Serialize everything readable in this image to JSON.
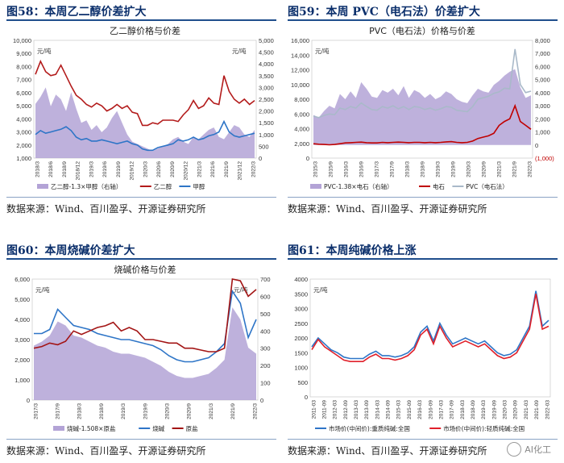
{
  "figures": [
    {
      "label": "图58：本周乙二醇价差扩大",
      "source": "数据来源：Wind、百川盈孚、开源证券研究所",
      "chart_data": {
        "type": "area",
        "title": "乙二醇价格与价差",
        "unit_left": "元/吨",
        "unit_right": "元/吨",
        "ylim_left": [
          1000,
          10000
        ],
        "ylim_right": [
          0,
          5000
        ],
        "yticks_left": [
          "10,000",
          "9,000",
          "8,000",
          "7,000",
          "6,000",
          "5,000",
          "4,000",
          "3,000",
          "2,000",
          "1,000"
        ],
        "yticks_right": [
          "5,000",
          "4,500",
          "4,000",
          "3,500",
          "3,000",
          "2,500",
          "2,000",
          "1,500",
          "1,000",
          "500",
          "0"
        ],
        "xticks": [
          "2018/3",
          "2018/6",
          "2018/9",
          "2018/12",
          "2019/3",
          "2019/6",
          "2019/9",
          "2019/12",
          "2020/3",
          "2020/6",
          "2020/9",
          "2020/12",
          "2021/3",
          "2021/6",
          "2021/9",
          "2021/12",
          "2022/3"
        ],
        "series": [
          {
            "name": "乙二醇-1.3×甲醇（右轴）",
            "axis": "right",
            "kind": "area",
            "color": "#b3a3d6",
            "values": [
              2300,
              2600,
              3000,
              2200,
              2700,
              2500,
              2000,
              2800,
              2100,
              1500,
              1600,
              1200,
              1400,
              1100,
              1300,
              1700,
              2000,
              1500,
              1000,
              700,
              600,
              500,
              400,
              300,
              400,
              500,
              600,
              800,
              900,
              700,
              600,
              900,
              800,
              1000,
              1200,
              1300,
              900,
              800,
              1100,
              1400,
              1300,
              1000,
              900,
              1200
            ]
          },
          {
            "name": "乙二醇",
            "axis": "left",
            "kind": "line",
            "color": "#b31b1b",
            "values": [
              7400,
              8400,
              7600,
              7300,
              7400,
              8100,
              7300,
              6500,
              5800,
              5500,
              5100,
              4900,
              5200,
              5000,
              4600,
              4800,
              5100,
              4800,
              5000,
              4500,
              4400,
              3500,
              3500,
              3700,
              3600,
              3900,
              3900,
              3900,
              3800,
              4300,
              4700,
              5400,
              4800,
              5000,
              5600,
              5200,
              5100,
              7300,
              6100,
              5500,
              5200,
              5500,
              5100,
              5400
            ]
          },
          {
            "name": "甲醇",
            "axis": "left",
            "kind": "line",
            "color": "#2e75c7",
            "values": [
              2800,
              3100,
              2900,
              3000,
              3100,
              3200,
              3400,
              3100,
              2600,
              2400,
              2500,
              2300,
              2300,
              2400,
              2300,
              2200,
              2100,
              2200,
              2300,
              2100,
              2000,
              1700,
              1600,
              1600,
              1800,
              1900,
              2000,
              2100,
              2400,
              2300,
              2400,
              2600,
              2400,
              2500,
              2700,
              2800,
              3000,
              3800,
              3000,
              2700,
              2600,
              2700,
              2800,
              2900
            ]
          }
        ],
        "legend": [
          "乙二醇-1.3×甲醇（右轴）",
          "乙二醇",
          "甲醇"
        ]
      }
    },
    {
      "label": "图59：本周 PVC（电石法）价差扩大",
      "source": "数据来源：Wind、百川盈孚、开源证券研究所",
      "chart_data": {
        "type": "area",
        "title": "PVC（电石法）价格与价差",
        "unit_left": "元/吨",
        "ylim_left": [
          0,
          16000
        ],
        "ylim_right": [
          -1000,
          8000
        ],
        "yticks_left": [
          "16,000",
          "14,000",
          "12,000",
          "10,000",
          "8,000",
          "6,000",
          "4,000",
          "2,000",
          "0"
        ],
        "yticks_right": [
          "8,000",
          "7,000",
          "6,000",
          "5,000",
          "4,000",
          "3,000",
          "2,000",
          "1,000",
          "0",
          "(1,000)"
        ],
        "xticks": [
          "2015/3",
          "2015/9",
          "2016/3",
          "2016/9",
          "2017/3",
          "2017/9",
          "2018/3",
          "2018/9",
          "2019/3",
          "2019/9",
          "2020/3",
          "2020/9",
          "2021/3",
          "2021/9",
          "2022/3"
        ],
        "series": [
          {
            "name": "PVC-1.38×电石（右轴）",
            "axis": "right",
            "kind": "area",
            "color": "#b3a3d6",
            "values": [
              2300,
              2100,
              2600,
              3000,
              2800,
              3900,
              3500,
              4100,
              3600,
              4800,
              4300,
              3700,
              3600,
              4200,
              4000,
              4300,
              3800,
              4500,
              3600,
              4200,
              4000,
              3600,
              3900,
              3500,
              3700,
              4100,
              3900,
              3500,
              3300,
              3200,
              3800,
              4300,
              4100,
              4000,
              4600,
              4900,
              5300,
              5600,
              5800,
              4400,
              3600,
              3800
            ]
          },
          {
            "name": "电石",
            "axis": "right",
            "kind": "line",
            "color": "#c00000",
            "values": [
              100,
              60,
              40,
              20,
              40,
              100,
              160,
              180,
              200,
              220,
              180,
              160,
              160,
              200,
              180,
              200,
              220,
              200,
              180,
              200,
              200,
              180,
              200,
              180,
              200,
              240,
              260,
              200,
              180,
              200,
              300,
              500,
              600,
              700,
              900,
              1500,
              1800,
              2000,
              3000,
              1800,
              1500,
              1200
            ]
          },
          {
            "name": "PVC（电石法）",
            "axis": "left",
            "kind": "line",
            "color": "#a9b9c9",
            "values": [
              5700,
              5500,
              5800,
              6000,
              5900,
              6800,
              6600,
              7000,
              6800,
              7500,
              7000,
              6600,
              6500,
              7000,
              6800,
              7100,
              6700,
              7000,
              6600,
              7000,
              6900,
              6600,
              6800,
              6500,
              6700,
              7000,
              6900,
              6500,
              6400,
              6300,
              7000,
              8000,
              8200,
              8400,
              8800,
              9000,
              9500,
              9400,
              14800,
              10000,
              8900,
              9100
            ]
          }
        ],
        "legend": [
          "PVC-1.38×电石（右轴）",
          "电石",
          "PVC（电石法）"
        ]
      }
    },
    {
      "label": "图60：本周烧碱价差扩大",
      "source": "数据来源：Wind、百川盈孚、开源证券研究所",
      "chart_data": {
        "type": "area",
        "title": "烧碱价格与价差",
        "unit_left": "元/吨",
        "unit_right": "元/吨",
        "ylim_left": [
          0,
          6000
        ],
        "ylim_right": [
          0,
          700
        ],
        "yticks_left": [
          "6,000",
          "5,000",
          "4,000",
          "3,000",
          "2,000",
          "1,000",
          "0"
        ],
        "yticks_right": [
          "700",
          "600",
          "500",
          "400",
          "300",
          "200",
          "100",
          "0"
        ],
        "xticks": [
          "2017/3",
          "2017/9",
          "2018/3",
          "2018/9",
          "2019/3",
          "2019/9",
          "2020/3",
          "2020/9",
          "2021/3",
          "2021/9",
          "2022/3"
        ],
        "series": [
          {
            "name": "烧碱-1.508×原盐",
            "axis": "left",
            "kind": "area",
            "color": "#b3a3d6",
            "values": [
              2700,
              2900,
              3200,
              3900,
              3700,
              3200,
              3100,
              2900,
              2700,
              2600,
              2400,
              2300,
              2300,
              2200,
              2100,
              1900,
              1700,
              1400,
              1200,
              1100,
              1100,
              1200,
              1300,
              1600,
              2000,
              4600,
              4000,
              2600,
              2300
            ]
          },
          {
            "name": "烧碱",
            "axis": "left",
            "kind": "line",
            "color": "#2e75c7",
            "values": [
              3300,
              3300,
              3500,
              4500,
              4100,
              3700,
              3600,
              3500,
              3300,
              3200,
              3100,
              3000,
              3000,
              2900,
              2800,
              2700,
              2500,
              2200,
              2000,
              1900,
              1900,
              2000,
              2100,
              2400,
              2800,
              5400,
              4800,
              3100,
              4000
            ]
          },
          {
            "name": "原盐",
            "axis": "right",
            "kind": "line",
            "color": "#a31515",
            "values": [
              300,
              310,
              330,
              320,
              340,
              400,
              380,
              400,
              420,
              430,
              450,
              400,
              420,
              400,
              350,
              350,
              340,
              330,
              330,
              300,
              300,
              290,
              280,
              280,
              300,
              700,
              690,
              600,
              640
            ]
          }
        ],
        "legend": [
          "烧碱-1.508×原盐",
          "烧碱",
          "原盐"
        ]
      }
    },
    {
      "label": "图61：本周纯碱价格上涨",
      "source": "数据来源：Wind、百川盈孚、开源证券研究所",
      "chart_data": {
        "type": "line",
        "unit_left": "元/吨",
        "ylim_left": [
          0,
          4000
        ],
        "yticks_left": [
          "4000",
          "3500",
          "3000",
          "2500",
          "2000",
          "1500",
          "1000",
          "500",
          "0"
        ],
        "xticks": [
          "2011-03",
          "2011-09",
          "2012-03",
          "2012-09",
          "2013-03",
          "2013-09",
          "2014-03",
          "2014-09",
          "2015-03",
          "2015-09",
          "2016-03",
          "2016-09",
          "2017-03",
          "2017-09",
          "2018-03",
          "2018-09",
          "2019-03",
          "2019-09",
          "2020-03",
          "2020-09",
          "2021-03",
          "2021-09",
          "2022-03"
        ],
        "series": [
          {
            "name": "市场价(中间价):重质纯碱:全国",
            "kind": "line",
            "color": "#2e75c7",
            "values": [
              1700,
              2000,
              1800,
              1600,
              1500,
              1350,
              1300,
              1300,
              1300,
              1450,
              1550,
              1400,
              1400,
              1350,
              1400,
              1500,
              1700,
              2200,
              2400,
              1900,
              2500,
              2100,
              1800,
              1900,
              2000,
              1900,
              1800,
              1900,
              1700,
              1500,
              1400,
              1450,
              1600,
              2000,
              2400,
              3600,
              2400,
              2600
            ]
          },
          {
            "name": "市场价(中间价):轻质纯碱:全国",
            "kind": "line",
            "color": "#e0202a",
            "values": [
              1600,
              1950,
              1700,
              1550,
              1400,
              1250,
              1200,
              1200,
              1200,
              1350,
              1450,
              1300,
              1300,
              1250,
              1300,
              1400,
              1600,
              2100,
              2300,
              1800,
              2400,
              2000,
              1700,
              1800,
              1900,
              1800,
              1700,
              1800,
              1600,
              1400,
              1300,
              1350,
              1500,
              1900,
              2300,
              3500,
              2300,
              2400
            ]
          }
        ],
        "legend": [
          "市场价(中间价):重质纯碱:全国",
          "市场价(中间价):轻质纯碱:全国"
        ]
      }
    }
  ],
  "watermark": "AI化工"
}
